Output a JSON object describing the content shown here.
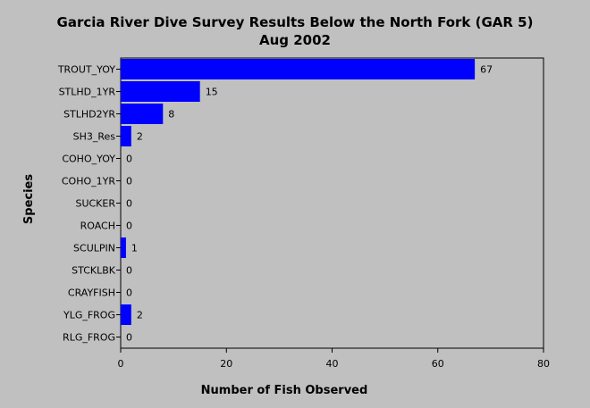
{
  "chart_data": {
    "type": "bar",
    "orientation": "horizontal",
    "title": "Garcia River Dive Survey Results Below the North Fork (GAR 5)",
    "subtitle": "Aug 2002",
    "xlabel": "Number of Fish Observed",
    "ylabel": "Species",
    "xlim": [
      0,
      80
    ],
    "xticks": [
      0,
      20,
      40,
      60,
      80
    ],
    "grid": false,
    "legend": "none",
    "bar_color": "#0000ff",
    "background_color": "#c0c0c0",
    "categories": [
      "TROUT_YOY",
      "STLHD_1YR",
      "STLHD2YR",
      "SH3_Res",
      "COHO_YOY",
      "COHO_1YR",
      "SUCKER",
      "ROACH",
      "SCULPIN",
      "STCKLBK",
      "CRAYFISH",
      "YLG_FROG",
      "RLG_FROG"
    ],
    "values": [
      67,
      15,
      8,
      2,
      0,
      0,
      0,
      0,
      1,
      0,
      0,
      2,
      0
    ]
  }
}
